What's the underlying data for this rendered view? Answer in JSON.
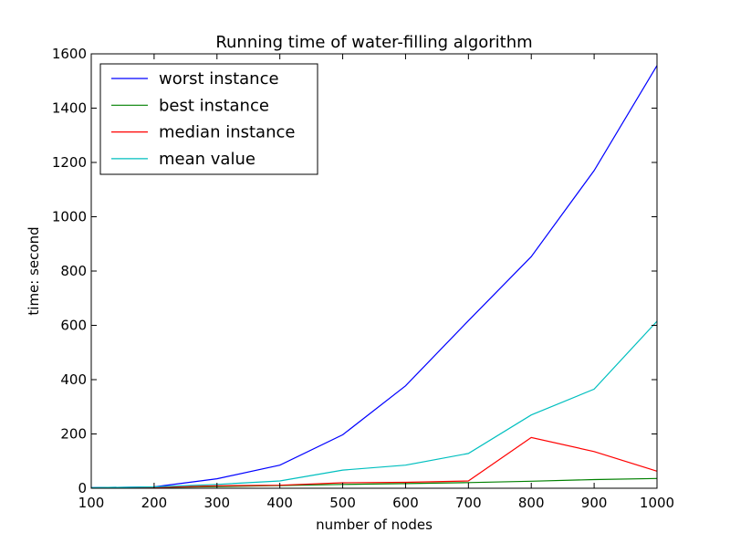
{
  "chart_data": {
    "type": "line",
    "title": "Running time of water-filling algorithm",
    "xlabel": "number of nodes",
    "ylabel": "time: second",
    "xlim": [
      100,
      1000
    ],
    "ylim": [
      0,
      1600
    ],
    "xticks": [
      "100",
      "200",
      "300",
      "400",
      "500",
      "600",
      "700",
      "800",
      "900",
      "1000"
    ],
    "yticks": [
      "0",
      "200",
      "400",
      "600",
      "800",
      "1000",
      "1200",
      "1400",
      "1600"
    ],
    "grid": false,
    "legend_position": "top-left",
    "x": [
      100,
      200,
      300,
      400,
      500,
      600,
      700,
      800,
      900,
      1000
    ],
    "series": [
      {
        "name": "worst instance",
        "color": "#0000ff",
        "values": [
          2,
          5,
          35,
          85,
          197,
          377,
          617,
          853,
          1170,
          1557
        ]
      },
      {
        "name": "best instance",
        "color": "#008000",
        "values": [
          1,
          3,
          6,
          10,
          14,
          17,
          21,
          26,
          32,
          36
        ]
      },
      {
        "name": "median instance",
        "color": "#ff0000",
        "values": [
          1,
          3,
          9,
          11,
          20,
          22,
          27,
          187,
          135,
          63
        ]
      },
      {
        "name": "mean value",
        "color": "#00bfbf",
        "values": [
          2,
          5,
          14,
          27,
          67,
          85,
          128,
          270,
          365,
          615
        ]
      }
    ]
  }
}
